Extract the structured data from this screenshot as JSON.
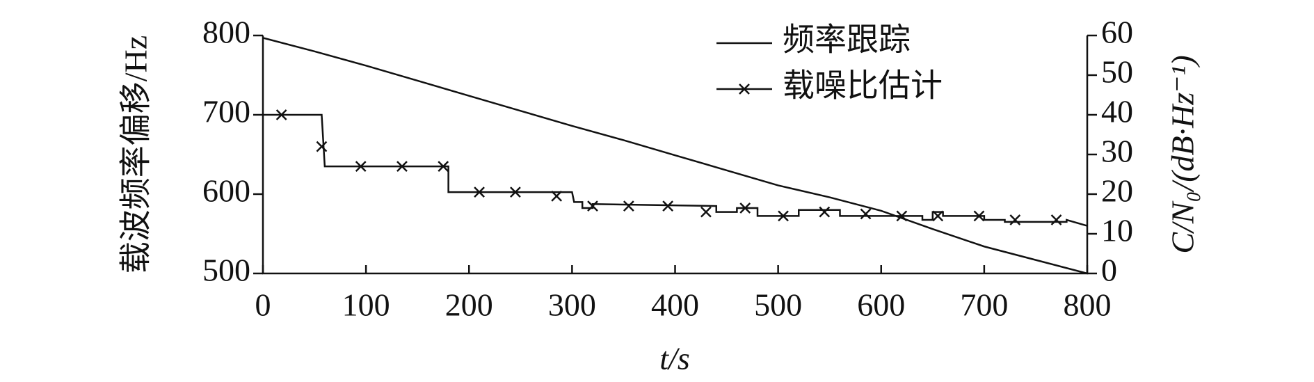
{
  "chart_data": {
    "type": "line",
    "xlabel": "t/s",
    "ylabel": "载波频率偏移/Hz",
    "y2label": "C/N₀/(dB·Hz⁻¹)",
    "xlim": [
      0,
      800
    ],
    "xticks": [
      0,
      100,
      200,
      300,
      400,
      500,
      600,
      700,
      800
    ],
    "ylim": [
      500,
      800
    ],
    "yticks": [
      500,
      600,
      700,
      800
    ],
    "y2lim": [
      0,
      60
    ],
    "y2ticks": [
      0,
      10,
      20,
      30,
      40,
      50,
      60
    ],
    "legend": "upper center",
    "series": [
      {
        "name": "频率跟踪",
        "color": "#111111",
        "x": [
          0,
          50,
          100,
          150,
          200,
          250,
          300,
          350,
          400,
          450,
          500,
          550,
          600,
          650,
          700,
          750,
          800
        ],
        "values": [
          797,
          780,
          762,
          743,
          724,
          705,
          686,
          668,
          649,
          630,
          611,
          596,
          579,
          556,
          534,
          517,
          500
        ]
      },
      {
        "name": "载噪比估计",
        "color": "#111111",
        "axis": "y2",
        "marker": "x",
        "x": [
          0,
          57,
          60,
          180,
          180,
          300,
          302,
          310,
          310,
          320,
          320,
          440,
          440,
          460,
          460,
          480,
          480,
          520,
          520,
          560,
          560,
          640,
          640,
          650,
          650,
          660,
          660,
          700,
          700,
          720,
          720,
          780,
          780,
          800
        ],
        "values": [
          40,
          40,
          27,
          27,
          20.5,
          20.5,
          18,
          18,
          16.5,
          16.5,
          17.5,
          17,
          15.5,
          15.5,
          16.5,
          16.5,
          14.5,
          14.5,
          16,
          16,
          14.5,
          14.5,
          13.5,
          13.5,
          15.5,
          15.5,
          14.5,
          14.5,
          13.5,
          13.5,
          13,
          13,
          13.5,
          12
        ],
        "markers": {
          "x": [
            18,
            57,
            95,
            135,
            175,
            210,
            245,
            285,
            320,
            355,
            393,
            430,
            468,
            505,
            545,
            585,
            620,
            655,
            695,
            730,
            770
          ],
          "values": [
            40,
            32,
            27,
            27,
            27,
            20.5,
            20.5,
            19.5,
            17,
            17,
            17,
            15.5,
            16.5,
            14.5,
            15.5,
            15,
            14.5,
            14.5,
            14.5,
            13.5,
            13.5
          ]
        }
      }
    ]
  }
}
